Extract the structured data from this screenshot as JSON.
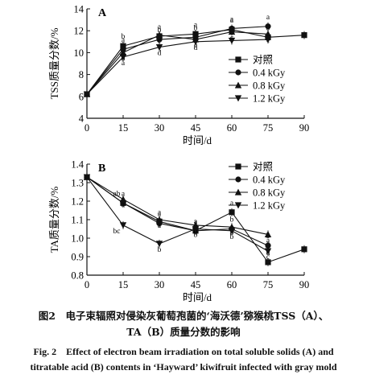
{
  "caption": {
    "cn_line1": "图2　电子束辐照对侵染灰葡萄孢菌的‘海沃德’猕猴桃TSS（A）、",
    "cn_line2": "TA（B）质量分数的影响",
    "en_line1": "Fig. 2　Effect of electron beam irradiation on total soluble solids (A) and",
    "en_line2": "titratable acid (B) contents in ‘Hayward’ kiwifruit infected with gray mold"
  },
  "colors": {
    "line": "#111111",
    "background": "#ffffff"
  },
  "chart_data": [
    {
      "type": "line",
      "panel": "A",
      "xlabel": "时间/d",
      "ylabel": "TSS质量分数/%",
      "xlim": [
        0,
        90
      ],
      "ylim": [
        4,
        14
      ],
      "xticks": [
        "0",
        "15",
        "30",
        "45",
        "60",
        "75",
        "90"
      ],
      "yticks": [
        "4",
        "6",
        "8",
        "10",
        "12",
        "14"
      ],
      "legend_position": "lower-right",
      "series": [
        {
          "name": "对照",
          "marker": "square",
          "x": [
            0,
            15,
            30,
            45,
            60,
            75,
            90
          ],
          "y": [
            6.2,
            10.6,
            11.5,
            11.7,
            12.1,
            11.4,
            11.6
          ],
          "labels": [
            "",
            "b",
            "a",
            "a",
            "a",
            "b",
            ""
          ]
        },
        {
          "name": "0.4 kGy",
          "marker": "circle",
          "x": [
            0,
            15,
            30,
            45,
            60,
            75
          ],
          "y": [
            6.2,
            10.3,
            11.2,
            11.4,
            12.2,
            12.4
          ],
          "labels": [
            "",
            "a",
            "b",
            "b",
            "a",
            "a"
          ]
        },
        {
          "name": "0.8 kGy",
          "marker": "triangle-up",
          "x": [
            0,
            15,
            30,
            45,
            60,
            75
          ],
          "y": [
            6.2,
            10.0,
            11.6,
            11.2,
            11.9,
            11.7
          ],
          "labels": [
            "",
            "b",
            "c",
            "c",
            "c",
            "c"
          ]
        },
        {
          "name": "1.2 kGy",
          "marker": "triangle-down",
          "x": [
            0,
            15,
            30,
            45,
            60,
            75
          ],
          "y": [
            6.2,
            9.6,
            10.5,
            11.0,
            11.1,
            11.2
          ],
          "labels": [
            "",
            "a",
            "d",
            "d",
            "",
            ""
          ]
        }
      ]
    },
    {
      "type": "line",
      "panel": "B",
      "xlabel": "时间/d",
      "ylabel": "TA质量分数/%",
      "xlim": [
        0,
        90
      ],
      "ylim": [
        0.8,
        1.4
      ],
      "xticks": [
        "0",
        "15",
        "30",
        "45",
        "60",
        "75",
        "90"
      ],
      "yticks": [
        "0.8",
        "0.9",
        "1.0",
        "1.1",
        "1.2",
        "1.3",
        "1.4"
      ],
      "legend_position": "top-right",
      "series": [
        {
          "name": "对照",
          "marker": "square",
          "x": [
            0,
            15,
            30,
            45,
            60,
            75,
            90
          ],
          "y": [
            1.33,
            1.19,
            1.09,
            1.04,
            1.14,
            0.87,
            0.94
          ],
          "labels": [
            "",
            "a",
            "a",
            "a",
            "a",
            "d",
            ""
          ]
        },
        {
          "name": "0.4 kGy",
          "marker": "circle",
          "x": [
            0,
            15,
            30,
            45,
            60,
            75
          ],
          "y": [
            1.33,
            1.19,
            1.08,
            1.04,
            1.05,
            0.96
          ],
          "labels": [
            "",
            "ab",
            "a",
            "a",
            "b",
            "b"
          ]
        },
        {
          "name": "0.8 kGy",
          "marker": "triangle-up",
          "x": [
            0,
            15,
            30,
            45,
            60,
            75
          ],
          "y": [
            1.33,
            1.21,
            1.1,
            1.07,
            1.06,
            1.02
          ],
          "labels": [
            "",
            "a",
            "a",
            "b",
            "b",
            "a"
          ]
        },
        {
          "name": "1.2 kGy",
          "marker": "triangle-down",
          "x": [
            0,
            15,
            30,
            45,
            60,
            75
          ],
          "y": [
            1.33,
            1.07,
            0.97,
            1.05,
            1.04,
            0.93
          ],
          "labels": [
            "",
            "bc",
            "b",
            "b",
            "b",
            "c"
          ]
        }
      ]
    }
  ]
}
